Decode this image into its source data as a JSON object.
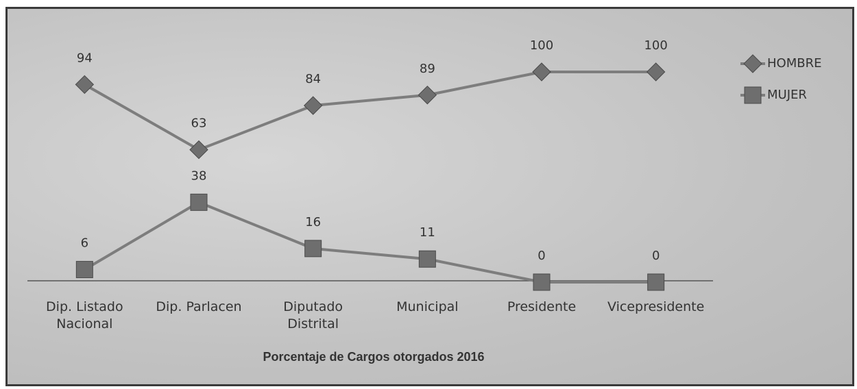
{
  "chart_data": {
    "type": "line",
    "title": "Porcentaje de Cargos otorgados 2016",
    "categories": [
      "Dip. Listado Nacional",
      "Dip. Parlacen",
      "Diputado Distrital",
      "Municipal",
      "Presidente",
      "Vicepresidente"
    ],
    "series": [
      {
        "name": "HOMBRE",
        "color": "#7d7d7d",
        "marker": "diamond",
        "values": [
          94,
          63,
          84,
          89,
          100,
          100
        ]
      },
      {
        "name": "MUJER",
        "color": "#7d7d7d",
        "marker": "square",
        "values": [
          6,
          38,
          16,
          11,
          0,
          0
        ]
      }
    ],
    "ylim": [
      0,
      100
    ],
    "legend": "right"
  }
}
